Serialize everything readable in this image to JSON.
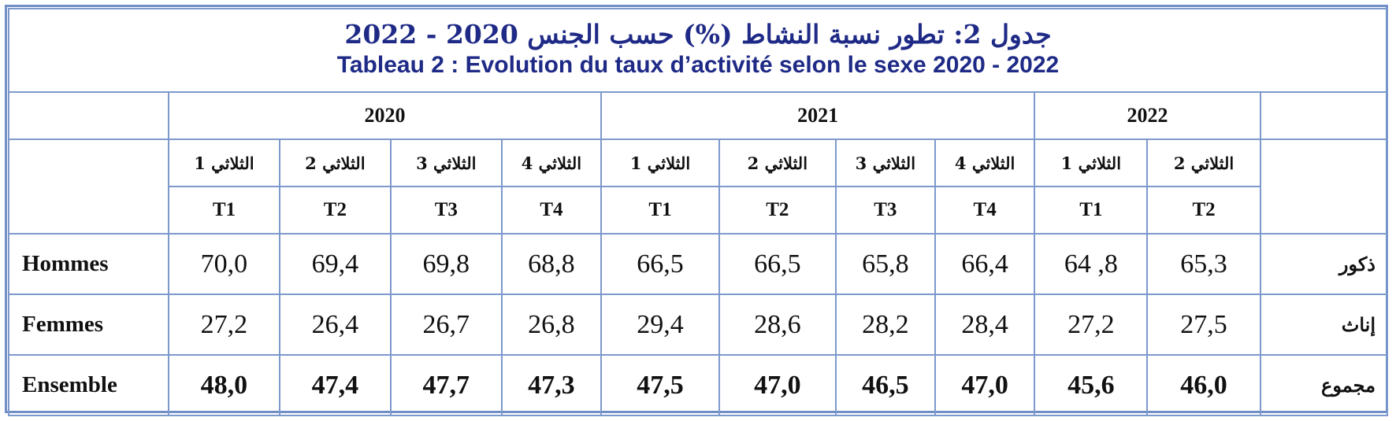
{
  "title": {
    "ar": "جدول 2: تطور نسبة النشاط (%) حسب الجنس 2020 - 2022",
    "fr": "Tableau 2 : Evolution du taux d’activité selon le sexe 2020 - 2022"
  },
  "years": [
    "2020",
    "2021",
    "2022"
  ],
  "quarters_ar": [
    "الثلاثي 1",
    "الثلاثي 2",
    "الثلاثي 3",
    "الثلاثي 4",
    "الثلاثي 1",
    "الثلاثي 2",
    "الثلاثي 3",
    "الثلاثي 4",
    "الثلاثي 1",
    "الثلاثي 2"
  ],
  "quarters_code": [
    "T1",
    "T2",
    "T3",
    "T4",
    "T1",
    "T2",
    "T3",
    "T4",
    "T1",
    "T2"
  ],
  "rows": [
    {
      "label_fr": "Hommes",
      "label_ar": "ذكور",
      "values": [
        "70,0",
        "69,4",
        "69,8",
        "68,8",
        "66,5",
        "66,5",
        "65,8",
        "66,4",
        "64 ,8",
        "65,3"
      ]
    },
    {
      "label_fr": "Femmes",
      "label_ar": "إناث",
      "values": [
        "27,2",
        "26,4",
        "26,7",
        "26,8",
        "29,4",
        "28,6",
        "28,2",
        "28,4",
        "27,2",
        "27,5"
      ]
    },
    {
      "label_fr": "Ensemble",
      "label_ar": "مجموع",
      "values": [
        "48,0",
        "47,4",
        "47,7",
        "47,3",
        "47,5",
        "47,0",
        "46,5",
        "47,0",
        "45,6",
        "46,0"
      ]
    }
  ],
  "colors": {
    "title": "#1e2a86",
    "border": "#7d99cc"
  }
}
